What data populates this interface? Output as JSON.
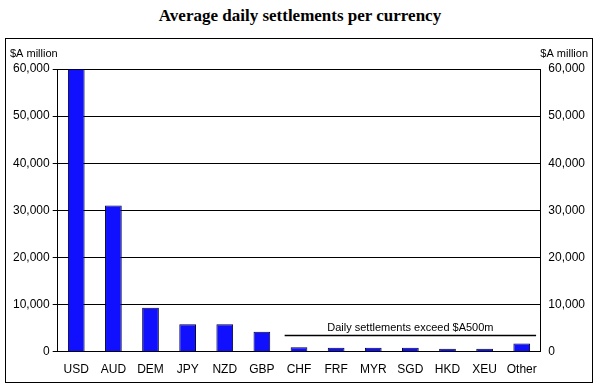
{
  "chart_data": {
    "type": "bar",
    "title": "Average daily settlements per currency",
    "ylabel": "$A million",
    "y2label": "$A million",
    "categories": [
      "USD",
      "AUD",
      "DEM",
      "JPY",
      "NZD",
      "GBP",
      "CHF",
      "FRF",
      "MYR",
      "SGD",
      "HKD",
      "XEU",
      "Other"
    ],
    "values": [
      60000,
      31000,
      9300,
      5800,
      5800,
      4200,
      900,
      800,
      800,
      800,
      600,
      600,
      1700
    ],
    "color": "#1010ff",
    "ylim": [
      0,
      60000
    ],
    "yticks": [
      0,
      {
        "value": 10000,
        "label": "10,000"
      },
      {
        "value": 20000,
        "label": "20,000"
      },
      {
        "value": 30000,
        "label": "30,000"
      },
      {
        "value": 40000,
        "label": "40,000"
      },
      {
        "value": 50000,
        "label": "50,000"
      },
      {
        "value": 60000,
        "label": "60,000"
      }
    ],
    "y2lim": [
      0,
      60000
    ],
    "y2ticks": [
      0,
      {
        "value": 10000,
        "label": "10,000"
      },
      {
        "value": 20000,
        "label": "20,000"
      },
      {
        "value": 30000,
        "label": "30,000"
      },
      {
        "value": 40000,
        "label": "40,000"
      },
      {
        "value": 50000,
        "label": "50,000"
      },
      {
        "value": 60000,
        "label": "60,000"
      }
    ],
    "grid": true,
    "annotation": {
      "text": "Daily settlements exceed $A500m",
      "from": "CHF",
      "to": "Other"
    }
  }
}
